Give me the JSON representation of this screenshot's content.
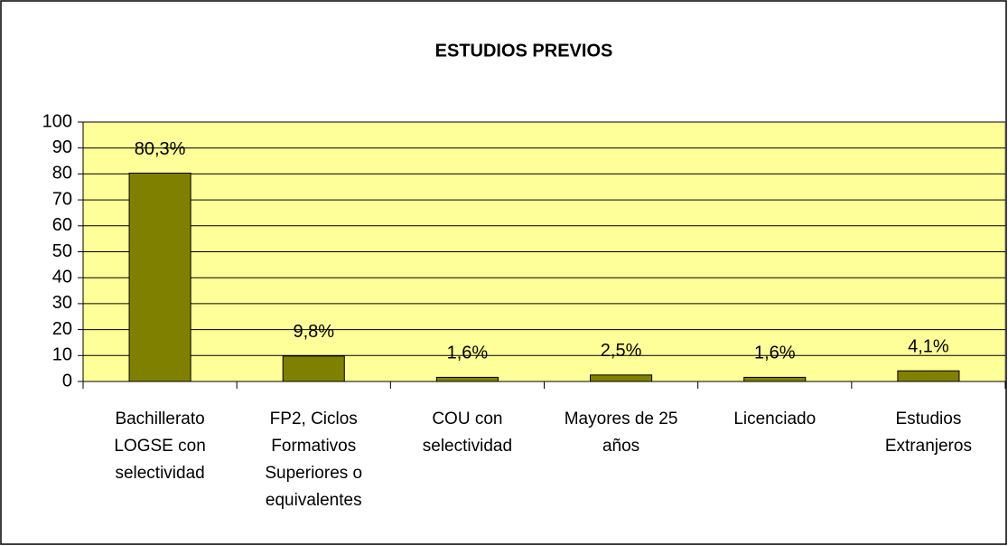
{
  "chart_data": {
    "type": "bar",
    "title": "ESTUDIOS PREVIOS",
    "categories": [
      "Bachillerato LOGSE con selectividad",
      "FP2, Ciclos Formativos Superiores o equivalentes",
      "COU con selectividad",
      "Mayores de 25 años",
      "Licenciado",
      "Estudios Extranjeros"
    ],
    "values": [
      80.3,
      9.8,
      1.6,
      2.5,
      1.6,
      4.1
    ],
    "value_labels": [
      "80,3%",
      "9,8%",
      "1,6%",
      "2,5%",
      "1,6%",
      "4,1%"
    ],
    "color": "#808000",
    "plot_background": "#ffff99",
    "ylim": [
      0,
      100
    ],
    "yticks": [
      0,
      10,
      20,
      30,
      40,
      50,
      60,
      70,
      80,
      90,
      100
    ],
    "grid": true
  }
}
